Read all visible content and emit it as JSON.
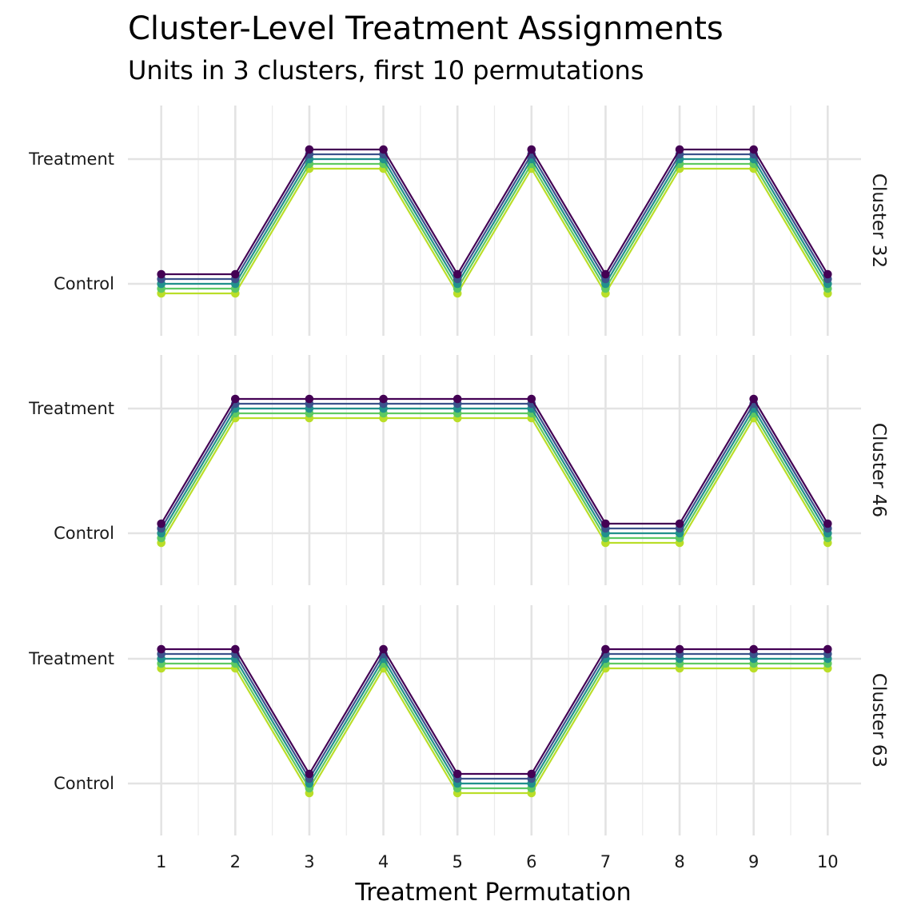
{
  "chart_data": {
    "type": "line",
    "title": "Cluster-Level Treatment Assignments",
    "subtitle": "Units in 3 clusters, first 10 permutations",
    "xlabel": "Treatment Permutation",
    "ylabel": "",
    "x": [
      1,
      2,
      3,
      4,
      5,
      6,
      7,
      8,
      9,
      10
    ],
    "y_levels": [
      "Control",
      "Treatment"
    ],
    "grid": true,
    "legend": "none",
    "units_per_cluster": 5,
    "unit_colors": [
      "#440154",
      "#3b528b",
      "#21918c",
      "#5ec962",
      "#bade28"
    ],
    "panels": [
      {
        "strip_label": "Cluster 32",
        "assignment": [
          "Control",
          "Control",
          "Treatment",
          "Treatment",
          "Control",
          "Treatment",
          "Control",
          "Treatment",
          "Treatment",
          "Control"
        ]
      },
      {
        "strip_label": "Cluster 46",
        "assignment": [
          "Control",
          "Treatment",
          "Treatment",
          "Treatment",
          "Treatment",
          "Treatment",
          "Control",
          "Control",
          "Treatment",
          "Control"
        ]
      },
      {
        "strip_label": "Cluster 63",
        "assignment": [
          "Treatment",
          "Treatment",
          "Control",
          "Treatment",
          "Control",
          "Control",
          "Treatment",
          "Treatment",
          "Treatment",
          "Treatment"
        ]
      }
    ]
  }
}
